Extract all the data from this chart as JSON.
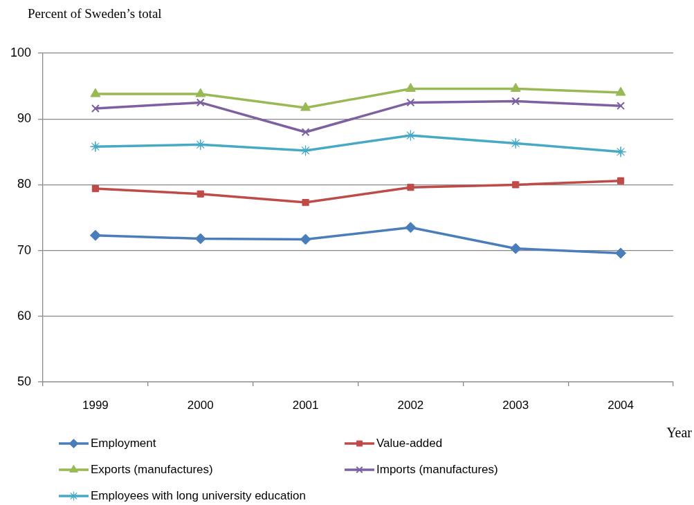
{
  "chart_data": {
    "type": "line",
    "ylabel": "Percent of Sweden’s total",
    "xlabel": "Year",
    "categories": [
      "1999",
      "2000",
      "2001",
      "2002",
      "2003",
      "2004"
    ],
    "ylim": [
      50,
      100
    ],
    "yticks": [
      50,
      60,
      70,
      80,
      90,
      100
    ],
    "grid": "y",
    "legend": "bottom",
    "series": [
      {
        "name": "Employment",
        "color": "#4a7ebb",
        "marker": "diamond",
        "values": [
          72.3,
          71.8,
          71.7,
          73.5,
          70.3,
          69.6
        ]
      },
      {
        "name": "Value-added",
        "color": "#be4b48",
        "marker": "square",
        "values": [
          79.4,
          78.6,
          77.3,
          79.6,
          80.0,
          80.6
        ]
      },
      {
        "name": "Exports (manufactures)",
        "color": "#98b954",
        "marker": "triangle",
        "values": [
          93.8,
          93.8,
          91.7,
          94.6,
          94.6,
          94.0
        ]
      },
      {
        "name": "Imports (manufactures)",
        "color": "#7d60a0",
        "marker": "cross",
        "values": [
          91.6,
          92.5,
          88.0,
          92.5,
          92.7,
          92.0
        ]
      },
      {
        "name": "Employees with long university education",
        "color": "#46aac5",
        "marker": "star",
        "values": [
          85.8,
          86.1,
          85.2,
          87.5,
          86.3,
          85.0
        ]
      }
    ]
  }
}
